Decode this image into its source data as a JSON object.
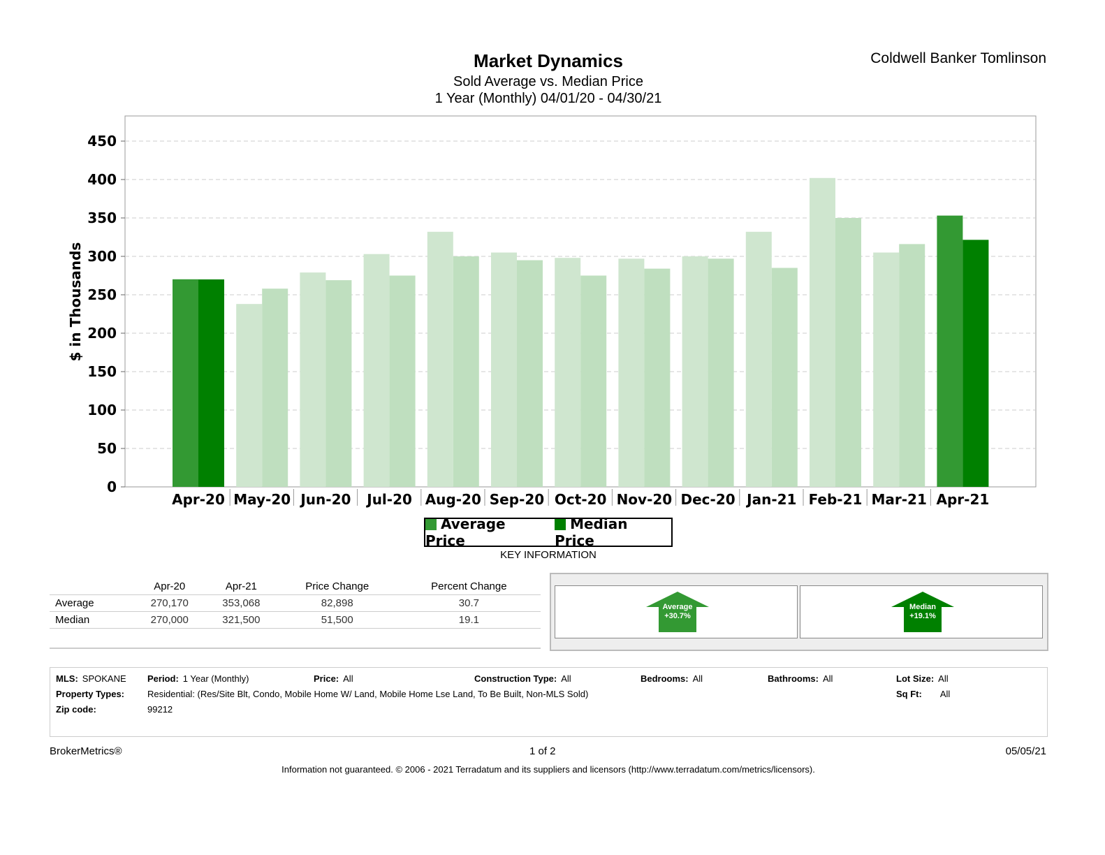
{
  "header": {
    "title": "Market Dynamics",
    "subtitle": "Sold Average vs. Median Price",
    "period": "1 Year (Monthly) 04/01/20 - 04/30/21",
    "brand": "Coldwell Banker Tomlinson"
  },
  "chart_data": {
    "type": "bar",
    "title": "Market Dynamics",
    "ylabel": "$ in Thousands",
    "xlabel": "",
    "ylim": [
      0,
      450
    ],
    "yticks": [
      0,
      50,
      100,
      150,
      200,
      250,
      300,
      350,
      400,
      450
    ],
    "grid": true,
    "legend_position": "bottom",
    "categories": [
      "Apr-20",
      "May-20",
      "Jun-20",
      "Jul-20",
      "Aug-20",
      "Sep-20",
      "Oct-20",
      "Nov-20",
      "Dec-20",
      "Jan-21",
      "Feb-21",
      "Mar-21",
      "Apr-21"
    ],
    "series": [
      {
        "name": "Average Price",
        "color": "#339933",
        "faded_color": "#cfe6cf",
        "values": [
          270.17,
          238,
          279,
          303,
          332,
          305,
          298,
          297,
          300,
          332,
          402,
          305,
          353.068
        ]
      },
      {
        "name": "Median Price",
        "color": "#008000",
        "faded_color": "#bfdfbf",
        "values": [
          270.0,
          258,
          269,
          275,
          300,
          295,
          275,
          284,
          297,
          285,
          350,
          316,
          321.5
        ]
      }
    ],
    "highlighted_categories": [
      "Apr-20",
      "Apr-21"
    ]
  },
  "key_info": {
    "title": "KEY INFORMATION",
    "columns": [
      "",
      "Apr-20",
      "Apr-21",
      "Price Change",
      "Percent Change"
    ],
    "rows": [
      [
        "Average",
        "270,170",
        "353,068",
        "82,898",
        "30.7"
      ],
      [
        "Median",
        "270,000",
        "321,500",
        "51,500",
        "19.1"
      ]
    ],
    "arrows": [
      {
        "label": "Average",
        "value": "+30.7%",
        "color": "#339933"
      },
      {
        "label": "Median",
        "value": "+19.1%",
        "color": "#008000"
      }
    ]
  },
  "filters": {
    "mls_label": "MLS:",
    "mls": "SPOKANE",
    "period_label": "Period:",
    "period": "1 Year (Monthly)",
    "price_label": "Price:",
    "price": "All",
    "construction_label": "Construction Type:",
    "construction": "All",
    "bedrooms_label": "Bedrooms:",
    "bedrooms": "All",
    "bathrooms_label": "Bathrooms:",
    "bathrooms": "All",
    "lot_label": "Lot Size:",
    "lot": "All",
    "sqft_label": "Sq Ft:",
    "sqft": "All",
    "ptypes_label": "Property Types:",
    "ptypes": "Residential: (Res/Site Blt, Condo, Mobile Home W/ Land, Mobile Home Lse Land, To Be Built, Non-MLS Sold)",
    "zip_label": "Zip code:",
    "zip": "99212"
  },
  "footer": {
    "brand": "BrokerMetrics®",
    "page": "1 of 2",
    "date": "05/05/21",
    "disclaimer": "Information not guaranteed.  © 2006 - 2021 Terradatum and its suppliers and licensors (http://www.terradatum.com/metrics/licensors)."
  }
}
